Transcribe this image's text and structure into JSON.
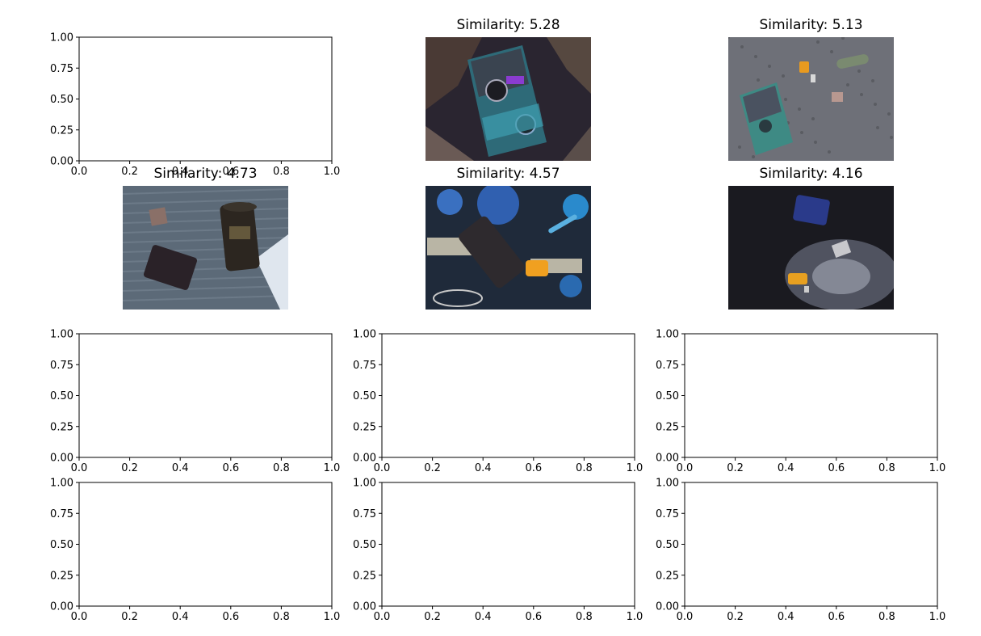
{
  "figure": {
    "rows": 4,
    "cols": 3,
    "panels": [
      {
        "kind": "axes"
      },
      {
        "kind": "image",
        "title": "Similarity: 5.28",
        "scene": "book-dark-foil"
      },
      {
        "kind": "image",
        "title": "Similarity: 5.13",
        "scene": "book-asphalt"
      },
      {
        "kind": "image",
        "title": "Similarity: 4.73",
        "scene": "tumbler-wallet"
      },
      {
        "kind": "image",
        "title": "Similarity: 4.57",
        "scene": "tumbler-tablecloth"
      },
      {
        "kind": "image",
        "title": "Similarity: 4.16",
        "scene": "wallet-dark"
      },
      {
        "kind": "axes"
      },
      {
        "kind": "axes"
      },
      {
        "kind": "axes"
      },
      {
        "kind": "axes"
      },
      {
        "kind": "axes"
      },
      {
        "kind": "axes"
      }
    ]
  },
  "chart_data": {
    "type": "image-grid",
    "xlim": [
      0.0,
      1.0
    ],
    "ylim": [
      0.0,
      1.0
    ],
    "xticks": [
      "0.0",
      "0.2",
      "0.4",
      "0.6",
      "0.8",
      "1.0"
    ],
    "yticks": [
      "0.00",
      "0.25",
      "0.50",
      "0.75",
      "1.00"
    ],
    "similarities": [
      5.28,
      5.13,
      4.73,
      4.57,
      4.16
    ],
    "grid": false
  },
  "colors": {
    "axis": "#000000",
    "background": "#ffffff"
  }
}
